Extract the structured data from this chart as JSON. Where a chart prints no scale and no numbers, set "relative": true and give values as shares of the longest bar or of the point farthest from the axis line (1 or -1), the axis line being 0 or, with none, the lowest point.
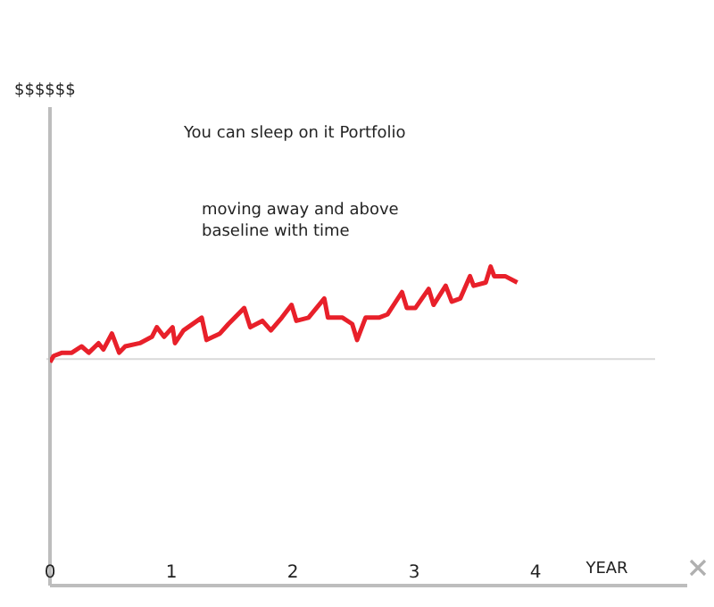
{
  "chart_data": {
    "type": "line",
    "title": "You can sleep on it Portfolio",
    "xlabel": "YEAR",
    "annotations": [
      "$$$$$$",
      "moving away and above\nbaseline with time"
    ],
    "relative": true,
    "xlim": [
      0,
      5.25
    ],
    "xticks": [
      0,
      1,
      2,
      3,
      4
    ],
    "grid": false,
    "legend": false,
    "marker": "none",
    "line_style": "solid",
    "ref_lines": [
      {
        "axis": "y",
        "value": 0.71,
        "color": "#d9d9d9"
      }
    ],
    "series": [
      {
        "color": "#e8202a",
        "x": [
          0,
          0.03,
          0.1,
          0.18,
          0.26,
          0.32,
          0.4,
          0.44,
          0.51,
          0.57,
          0.62,
          0.74,
          0.84,
          0.88,
          0.94,
          1.01,
          1.03,
          1.1,
          1.25,
          1.29,
          1.4,
          1.47,
          1.6,
          1.65,
          1.75,
          1.82,
          1.91,
          1.99,
          2.03,
          2.13,
          2.26,
          2.29,
          2.41,
          2.49,
          2.53,
          2.6,
          2.71,
          2.78,
          2.9,
          2.94,
          3.01,
          3.12,
          3.16,
          3.26,
          3.31,
          3.38,
          3.46,
          3.49,
          3.59,
          3.63,
          3.66,
          3.75,
          3.85
        ],
        "values": [
          0.7,
          0.72,
          0.73,
          0.73,
          0.75,
          0.73,
          0.76,
          0.74,
          0.79,
          0.73,
          0.75,
          0.76,
          0.78,
          0.81,
          0.78,
          0.81,
          0.76,
          0.8,
          0.84,
          0.77,
          0.79,
          0.82,
          0.87,
          0.81,
          0.83,
          0.8,
          0.84,
          0.88,
          0.83,
          0.84,
          0.9,
          0.84,
          0.84,
          0.82,
          0.77,
          0.84,
          0.84,
          0.85,
          0.92,
          0.87,
          0.87,
          0.93,
          0.88,
          0.94,
          0.89,
          0.9,
          0.97,
          0.94,
          0.95,
          1,
          0.97,
          0.97,
          0.95
        ]
      }
    ]
  }
}
